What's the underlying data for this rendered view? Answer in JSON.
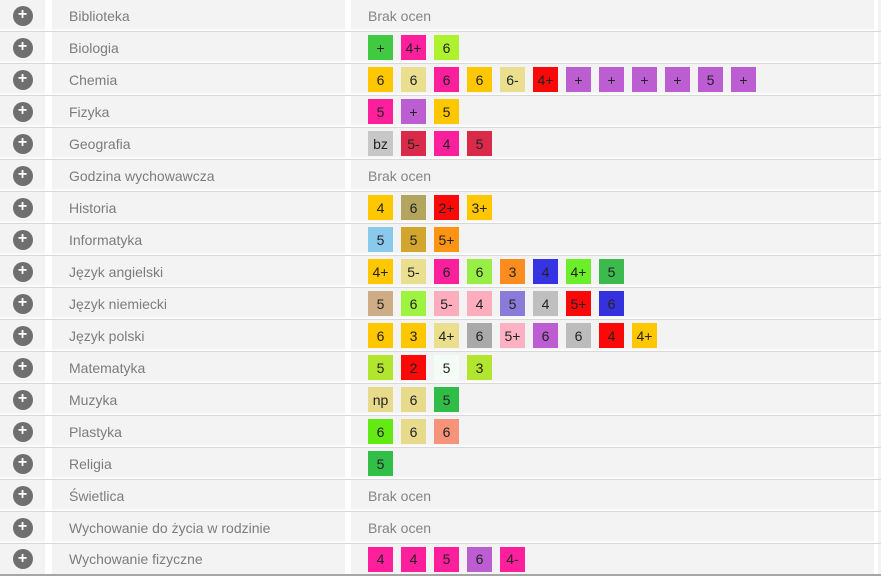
{
  "icons": {
    "expand": {
      "name": "plus-circle-icon",
      "glyph": "+"
    }
  },
  "colors": {
    "row_background": "#f3f3f3",
    "divider": "#ffffff",
    "row_border": "#d9d9d9",
    "bottom_border": "#a6a6a6",
    "icon_circle": "#6f6f6f",
    "subject_text": "#7c7c7c",
    "no_grades_text": "#848484"
  },
  "table": {
    "rows": [
      {
        "subject": "Biblioteka",
        "no_grades_label": "Brak ocen",
        "grades": []
      },
      {
        "subject": "Biologia",
        "grades": [
          {
            "label": "+",
            "color": "#41c941"
          },
          {
            "label": "4+",
            "color": "#fe1f9c"
          },
          {
            "label": "6",
            "color": "#aef22f"
          }
        ]
      },
      {
        "subject": "Chemia",
        "grades": [
          {
            "label": "6",
            "color": "#fec700"
          },
          {
            "label": "6",
            "color": "#e9df8f"
          },
          {
            "label": "6",
            "color": "#fe1f9c"
          },
          {
            "label": "6",
            "color": "#fec700"
          },
          {
            "label": "6-",
            "color": "#e9df8f"
          },
          {
            "label": "4+",
            "color": "#fb0909"
          },
          {
            "label": "+",
            "color": "#bc5ed2"
          },
          {
            "label": "+",
            "color": "#bc5ed2"
          },
          {
            "label": "+",
            "color": "#bc5ed2"
          },
          {
            "label": "+",
            "color": "#bc5ed2"
          },
          {
            "label": "5",
            "color": "#bc5ed2"
          },
          {
            "label": "+",
            "color": "#bc5ed2"
          }
        ]
      },
      {
        "subject": "Fizyka",
        "grades": [
          {
            "label": "5",
            "color": "#fe1f9c"
          },
          {
            "label": "+",
            "color": "#bc5ed2"
          },
          {
            "label": "5",
            "color": "#fec700"
          }
        ]
      },
      {
        "subject": "Geografia",
        "grades": [
          {
            "label": "bz",
            "color": "#c7c7c7"
          },
          {
            "label": "5-",
            "color": "#da2a49"
          },
          {
            "label": "4",
            "color": "#fe1f9c"
          },
          {
            "label": "5",
            "color": "#da2a49"
          }
        ]
      },
      {
        "subject": "Godzina wychowawcza",
        "no_grades_label": "Brak ocen",
        "grades": []
      },
      {
        "subject": "Historia",
        "grades": [
          {
            "label": "4",
            "color": "#fec700"
          },
          {
            "label": "6",
            "color": "#b3a55e"
          },
          {
            "label": "2+",
            "color": "#fb0909"
          },
          {
            "label": "3+",
            "color": "#fec700"
          }
        ]
      },
      {
        "subject": "Informatyka",
        "grades": [
          {
            "label": "5",
            "color": "#88c9ec"
          },
          {
            "label": "5",
            "color": "#d1a52e"
          },
          {
            "label": "5+",
            "color": "#fd9414"
          }
        ]
      },
      {
        "subject": "Język angielski",
        "grades": [
          {
            "label": "4+",
            "color": "#fec700"
          },
          {
            "label": "5-",
            "color": "#e9df8f"
          },
          {
            "label": "6",
            "color": "#fe1f9c"
          },
          {
            "label": "6",
            "color": "#98ee45"
          },
          {
            "label": "3",
            "color": "#fc8c1d"
          },
          {
            "label": "4",
            "color": "#3634e2"
          },
          {
            "label": "4+",
            "color": "#6bef2a"
          },
          {
            "label": "5",
            "color": "#3cba4d"
          }
        ]
      },
      {
        "subject": "Język niemiecki",
        "grades": [
          {
            "label": "5",
            "color": "#ceac85"
          },
          {
            "label": "6",
            "color": "#9df33f"
          },
          {
            "label": "5-",
            "color": "#feadbd"
          },
          {
            "label": "4",
            "color": "#feadbd"
          },
          {
            "label": "5",
            "color": "#8b7bd9"
          },
          {
            "label": "4",
            "color": "#bfbfbf"
          },
          {
            "label": "5+",
            "color": "#fb0909"
          },
          {
            "label": "6",
            "color": "#3431dd"
          }
        ]
      },
      {
        "subject": "Język polski",
        "grades": [
          {
            "label": "6",
            "color": "#fec700"
          },
          {
            "label": "3",
            "color": "#fec700"
          },
          {
            "label": "4+",
            "color": "#e9df8f"
          },
          {
            "label": "6",
            "color": "#a9a9a9"
          },
          {
            "label": "5+",
            "color": "#feb1c2"
          },
          {
            "label": "6",
            "color": "#bc5ed2"
          },
          {
            "label": "6",
            "color": "#bcbcbc"
          },
          {
            "label": "4",
            "color": "#fb0909"
          },
          {
            "label": "4+",
            "color": "#fec700"
          }
        ]
      },
      {
        "subject": "Matematyka",
        "grades": [
          {
            "label": "5",
            "color": "#b2e52e"
          },
          {
            "label": "2",
            "color": "#fb0909"
          },
          {
            "label": "5",
            "color": "#f3fcf5"
          },
          {
            "label": "3",
            "color": "#b2e52e"
          }
        ]
      },
      {
        "subject": "Muzyka",
        "grades": [
          {
            "label": "np",
            "color": "#e8da8b"
          },
          {
            "label": "6",
            "color": "#e8da8b"
          },
          {
            "label": "5",
            "color": "#2fbd48"
          }
        ]
      },
      {
        "subject": "Plastyka",
        "grades": [
          {
            "label": "6",
            "color": "#63ea15"
          },
          {
            "label": "6",
            "color": "#e8da8b"
          },
          {
            "label": "6",
            "color": "#f7927b"
          }
        ]
      },
      {
        "subject": "Religia",
        "grades": [
          {
            "label": "5",
            "color": "#31bf48"
          }
        ]
      },
      {
        "subject": "Świetlica",
        "no_grades_label": "Brak ocen",
        "grades": []
      },
      {
        "subject": "Wychowanie do życia w rodzinie",
        "no_grades_label": "Brak ocen",
        "grades": []
      },
      {
        "subject": "Wychowanie fizyczne",
        "grades": [
          {
            "label": "4",
            "color": "#fe1f9c"
          },
          {
            "label": "4",
            "color": "#fe1f9c"
          },
          {
            "label": "5",
            "color": "#fe1f9c"
          },
          {
            "label": "6",
            "color": "#bc5ed2"
          },
          {
            "label": "4-",
            "color": "#fe1f9c"
          }
        ]
      }
    ]
  }
}
